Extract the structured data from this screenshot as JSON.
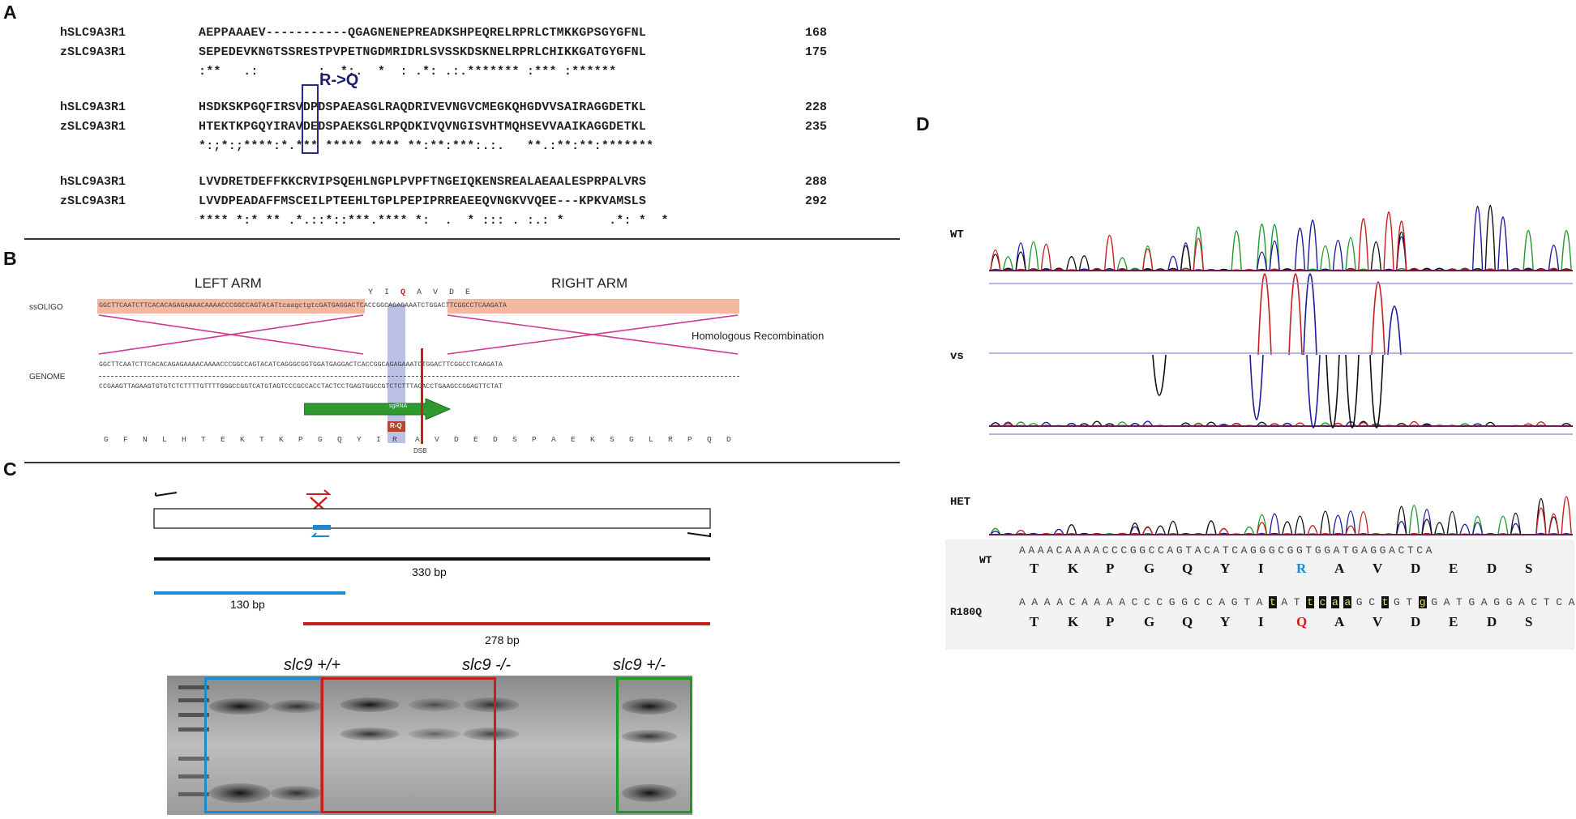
{
  "panels": {
    "A": "A",
    "B": "B",
    "C": "C",
    "D": "D"
  },
  "alignment": {
    "blocks": [
      {
        "human_name": "hSLC9A3R1",
        "human_seq": "AEPPAAAEV-----------QGAGNENEPREADKSHPEQRELRPRLCTMKKGPSGYGFNL",
        "human_end": "168",
        "zebra_name": "zSLC9A3R1",
        "zebra_seq": "SEPEDEVKNGTSSRESTPVPETNGDMRIDRLSVSSKDSKNELRPRLCHIKKGATGYGFNL",
        "zebra_end": "175",
        "consensus": ":**   .:        :  *:.  *  : .*: .:.******* :*** :******"
      },
      {
        "human_name": "hSLC9A3R1",
        "human_seq": "HSDKSKPGQFIRSVDPDSPAEASGLRAQDRIVEVNGVCMEGKQHGDVVSAIRAGGDETKL",
        "human_end": "228",
        "zebra_name": "zSLC9A3R1",
        "zebra_seq": "HTEKTKPGQYIRAVDEDSPAEKSGLRPQDKIVQVNGISVHTMQHSEVVAAIKAGGDETKL",
        "zebra_end": "235",
        "consensus": "*:;*:;****:*.*** ***** **** **:**:***:.:.   **.:**:**:*******"
      },
      {
        "human_name": "hSLC9A3R1",
        "human_seq": "LVVDRETDEFFKKCRVIPSQEHLNGPLPVPFTNGEIQKENSREALAEAALESPRPALVRS",
        "human_end": "288",
        "zebra_name": "zSLC9A3R1",
        "zebra_seq": "LVVDPEADAFFMSCEILPTEEHLTGPLPEPIPRREAEEQVNGKVVQEE---KPKVAMSLS",
        "zebra_end": "292",
        "consensus": "**** *:* ** .*.::*::***.**** *:  .  * ::: . :.: *      .*: *  *"
      }
    ],
    "mutation_label": "R->Q"
  },
  "panelB": {
    "left_arm": "LEFT ARM",
    "right_arm": "RIGHT ARM",
    "codons_top": [
      "Y",
      "I",
      "Q",
      "A",
      "V",
      "D",
      "E"
    ],
    "ssoligo_label": "ssOLIGO",
    "genome_label": "GENOME",
    "ssoligo_seq": "GGCTTCAATCTTCACACAGAGAAAACAAAACCCGGCCAGTAtATtcaagctgtcGATGAGGACTCACCGGCAGAGAAATCTGGACTTCGGCCTCAAGATA",
    "genome_seq": "GGCTTCAATCTTCACACAGAGAAAACAAAACCCGGCCAGTACATCAGGGCGGTGGATGAGGACTCACCGGCAGAGAAATCTGGACTTCGGCCTCAAGATA",
    "genome_comp": "CCGAAGTTAGAAGTGTGTCTCTTTTGTTTTGGGCCGGTCATGTAGTCCCGCCACCTACTCCTGAGTGGCCGTCTCTTTAGACCTGAAGCCGGAGTTCTAT",
    "homologous": "Homologous Recombination",
    "sgrna": "sgRNA",
    "rq_box": "R-Q",
    "protein_seq": [
      "G",
      "F",
      "N",
      "L",
      "H",
      "T",
      "E",
      "K",
      "T",
      "K",
      "P",
      "G",
      "Q",
      "Y",
      "I",
      "R",
      "A",
      "V",
      "D",
      "E",
      "D",
      "S",
      "P",
      "A",
      "E",
      "K",
      "S",
      "G",
      "L",
      "R",
      "P",
      "Q",
      "D"
    ],
    "dsb": "DSB"
  },
  "panelC": {
    "bp_330": "330 bp",
    "bp_130": "130 bp",
    "bp_278": "278 bp",
    "gel_labels": [
      "slc9 +/+",
      "slc9 -/-",
      "slc9 +/-"
    ]
  },
  "panelD": {
    "wt_label": "WT",
    "vs_label": "vs",
    "het_label": "HET",
    "wt_row_label": "WT",
    "mut_row_label": "R180Q",
    "wt_nt": "AAAACAAAACCCGGCCAGTACATCAGGGCGGTGGATGAGGACTCA",
    "mut_nt": "AAAACAAAACCCGGCCAGTAtATtcaaGCtGTgGATGAGGACTCA",
    "wt_aa": [
      "T",
      "K",
      "P",
      "G",
      "Q",
      "Y",
      "I",
      "R",
      "A",
      "V",
      "D",
      "E",
      "D",
      "S"
    ],
    "mut_aa": [
      "T",
      "K",
      "P",
      "G",
      "Q",
      "Y",
      "I",
      "Q",
      "A",
      "V",
      "D",
      "E",
      "D",
      "S"
    ]
  },
  "colors": {
    "primer_black": "#111111",
    "blue": "#1a8ad4",
    "red": "#c81e1e",
    "green": "#1e9a2a",
    "salmon": "#f4b8a0",
    "lavender": "#aab0e0"
  }
}
